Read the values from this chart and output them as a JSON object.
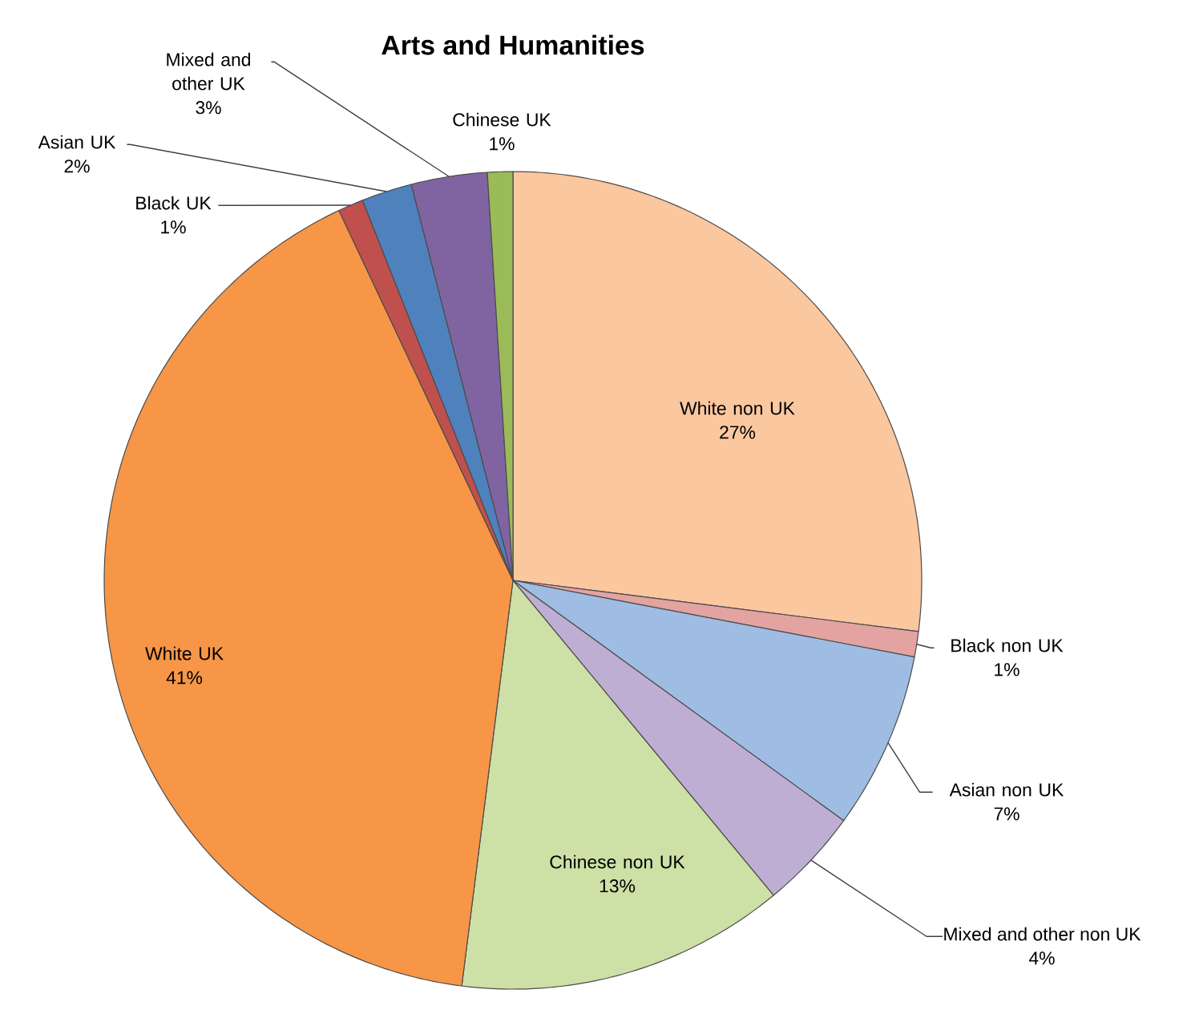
{
  "chart_data": {
    "type": "pie",
    "title": "Arts and Humanities",
    "categories": [
      "White non UK",
      "Black non UK",
      "Asian non UK",
      "Mixed and other non UK",
      "Chinese non UK",
      "White UK",
      "Black UK",
      "Asian UK",
      "Mixed and other UK",
      "Chinese UK"
    ],
    "values": [
      27,
      1,
      7,
      4,
      13,
      41,
      1,
      2,
      3,
      1
    ],
    "colors": [
      "#fbc79f",
      "#e3a3a1",
      "#9fbde3",
      "#bfaed3",
      "#cde0a6",
      "#f79646",
      "#c0504d",
      "#4f81bd",
      "#8064a2",
      "#9bbb59"
    ],
    "value_labels": [
      "27%",
      "1%",
      "7%",
      "4%",
      "13%",
      "41%",
      "1%",
      "2%",
      "3%",
      "1%"
    ]
  }
}
